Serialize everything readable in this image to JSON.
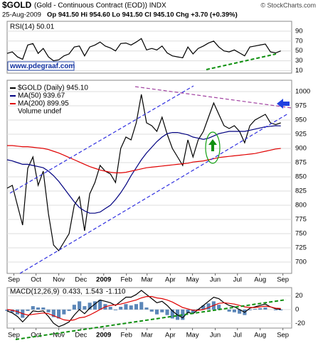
{
  "header": {
    "symbol": "$GOLD",
    "title": "(Gold - Continuous Contract (EOD)) INDX",
    "source": "© StockCharts.com",
    "date": "25-Aug-2009",
    "quote": "Op 941.50  Hi 954.60  Lo 941.50  Cl 945.10  Chg +3.70 (+0.39%)",
    "watermark": "www.pdegraaf.com"
  },
  "chart_data": [
    {
      "type": "line",
      "title": "RSI(14) 50.01",
      "xlim": [
        0,
        54
      ],
      "ylim": [
        5,
        110
      ],
      "yticks": [
        10,
        30,
        50,
        70,
        90
      ],
      "grid": true,
      "series": [
        {
          "name": null,
          "color": "#000000",
          "values": [
            45,
            48,
            38,
            33,
            62,
            65,
            45,
            55,
            38,
            30,
            32,
            40,
            44,
            58,
            60,
            40,
            58,
            62,
            68,
            60,
            56,
            50,
            65,
            66,
            62,
            68,
            75,
            52,
            55,
            52,
            60,
            46,
            40,
            38,
            36,
            58,
            44,
            55,
            60,
            66,
            70,
            58,
            50,
            48,
            52,
            46,
            40,
            58,
            60,
            62,
            64,
            48,
            46,
            50.01
          ]
        }
      ]
    },
    {
      "type": "line",
      "xlim": [
        0,
        54
      ],
      "ylim": [
        680,
        1020
      ],
      "yticks": [
        700,
        725,
        750,
        775,
        800,
        825,
        850,
        875,
        900,
        925,
        950,
        975,
        1000
      ],
      "grid": true,
      "xticks": [
        {
          "value": 1.3,
          "label": "Sep"
        },
        {
          "value": 5.6,
          "label": "Oct"
        },
        {
          "value": 10,
          "label": "Nov"
        },
        {
          "value": 14.3,
          "label": "Dec"
        },
        {
          "value": 18.7,
          "label": "2009"
        },
        {
          "value": 23.1,
          "label": "Feb"
        },
        {
          "value": 27.1,
          "label": "Mar"
        },
        {
          "value": 31.6,
          "label": "Apr"
        },
        {
          "value": 35.9,
          "label": "May"
        },
        {
          "value": 40.3,
          "label": "Jun"
        },
        {
          "value": 44.6,
          "label": "Jul"
        },
        {
          "value": 49,
          "label": "Aug"
        },
        {
          "value": 53.4,
          "label": "Sep"
        }
      ],
      "extra_legend": "Volume undef",
      "series": [
        {
          "name": "$GOLD (Daily) 945.10",
          "color": "#000000",
          "values": [
            830,
            835,
            800,
            765,
            865,
            885,
            835,
            860,
            785,
            730,
            720,
            735,
            750,
            800,
            815,
            755,
            820,
            840,
            870,
            860,
            855,
            840,
            900,
            920,
            915,
            945,
            995,
            945,
            940,
            930,
            955,
            925,
            900,
            885,
            870,
            915,
            885,
            915,
            930,
            955,
            980,
            960,
            940,
            935,
            940,
            930,
            910,
            940,
            950,
            955,
            960,
            945,
            942,
            945
          ]
        },
        {
          "name": "MA(50) 939.67",
          "color": "#000080",
          "values": [
            880,
            878,
            875,
            872,
            872,
            870,
            868,
            866,
            860,
            852,
            842,
            830,
            818,
            806,
            796,
            790,
            786,
            786,
            788,
            794,
            800,
            810,
            822,
            836,
            852,
            866,
            880,
            892,
            902,
            912,
            920,
            926,
            928,
            928,
            926,
            924,
            920,
            918,
            916,
            918,
            922,
            926,
            928,
            930,
            930,
            930,
            930,
            932,
            934,
            936,
            938,
            939,
            940,
            939.67
          ]
        },
        {
          "name": "MA(200) 899.95",
          "color": "#e00000",
          "values": [
            905,
            905,
            904,
            903,
            903,
            902,
            901,
            900,
            898,
            895,
            892,
            888,
            884,
            880,
            876,
            872,
            868,
            865,
            862,
            860,
            858,
            857,
            857,
            858,
            860,
            862,
            864,
            866,
            867,
            868,
            869,
            870,
            871,
            872,
            873,
            874,
            876,
            877,
            878,
            880,
            882,
            884,
            885,
            886,
            887,
            888,
            889,
            890,
            891,
            893,
            895,
            897,
            899,
            899.95
          ]
        }
      ]
    },
    {
      "type": "line",
      "title": "MACD(12,26,9)",
      "xlim": [
        0,
        54
      ],
      "ylim": [
        -27,
        32
      ],
      "yticks": [
        -20,
        0,
        20
      ],
      "grid": true,
      "xticks": [
        {
          "value": 1.3,
          "label": "Sep"
        },
        {
          "value": 5.6,
          "label": "Oct"
        },
        {
          "value": 10,
          "label": "Nov"
        },
        {
          "value": 14.3,
          "label": "Dec"
        },
        {
          "value": 18.7,
          "label": "2009"
        },
        {
          "value": 23.1,
          "label": "Feb"
        },
        {
          "value": 27.1,
          "label": "Mar"
        },
        {
          "value": 31.6,
          "label": "Apr"
        },
        {
          "value": 35.9,
          "label": "May"
        },
        {
          "value": 40.3,
          "label": "Jun"
        },
        {
          "value": 44.6,
          "label": "Jul"
        },
        {
          "value": 49,
          "label": "Aug"
        },
        {
          "value": 53.4,
          "label": "Sep"
        }
      ],
      "series": [
        {
          "name": "-1.110",
          "color": "#5b86b8",
          "style": "histogram",
          "values": [
            -2,
            -4,
            -7,
            -12,
            -2,
            5,
            3,
            3,
            -4,
            -11,
            -13,
            -7,
            -2,
            7,
            12,
            5,
            10,
            12,
            14,
            8,
            4,
            -1,
            4,
            8,
            6,
            8,
            11,
            3,
            -3,
            -7,
            -4,
            -8,
            -13,
            -15,
            -15,
            -5,
            -5,
            1,
            6,
            9,
            12,
            7,
            0,
            -3,
            -4,
            -6,
            -8,
            -1,
            1,
            2,
            3,
            0,
            -1,
            -1.11
          ]
        },
        {
          "name": "0.433,",
          "color": "#000000",
          "values": [
            -2,
            -5,
            -10,
            -18,
            -10,
            -2,
            -3,
            -2,
            -10,
            -20,
            -25,
            -22,
            -18,
            -8,
            0,
            -6,
            2,
            8,
            14,
            12,
            10,
            6,
            12,
            18,
            18,
            22,
            28,
            22,
            16,
            10,
            12,
            6,
            -2,
            -8,
            -12,
            -4,
            -6,
            0,
            6,
            12,
            18,
            16,
            10,
            6,
            4,
            0,
            -4,
            2,
            4,
            6,
            8,
            4,
            1,
            0.433
          ]
        },
        {
          "name": "1.543",
          "color": "#e00000",
          "values": [
            0,
            -1,
            -3,
            -6,
            -8,
            -7,
            -6,
            -5,
            -6,
            -9,
            -12,
            -15,
            -16,
            -15,
            -12,
            -11,
            -8,
            -4,
            0,
            4,
            6,
            7,
            8,
            10,
            12,
            14,
            17,
            19,
            19,
            17,
            16,
            14,
            11,
            7,
            3,
            1,
            -1,
            -1,
            0,
            3,
            6,
            9,
            10,
            9,
            8,
            6,
            4,
            3,
            3,
            4,
            5,
            4,
            2,
            1.543
          ]
        }
      ]
    }
  ]
}
